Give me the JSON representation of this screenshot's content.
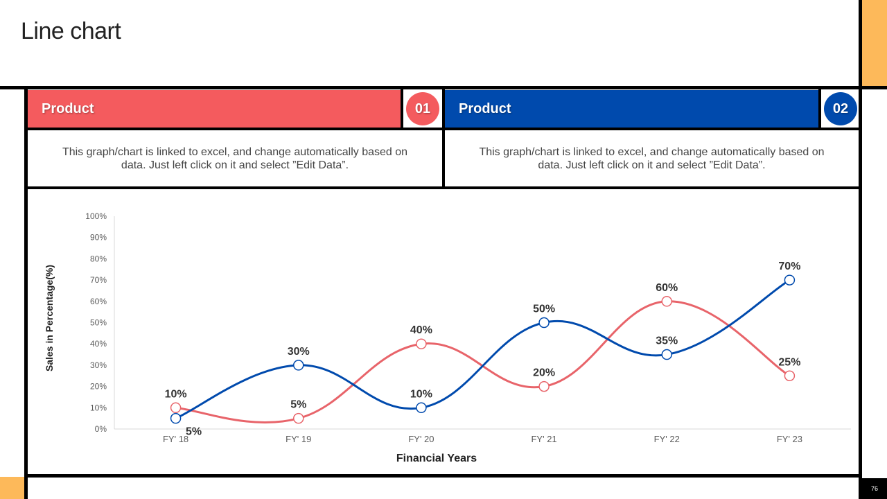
{
  "slide": {
    "title": "Line chart",
    "page_number": "76",
    "accent_color": "#FDB95A"
  },
  "products": [
    {
      "label": "Product",
      "number": "01",
      "color": "#F45B5E",
      "description": "This graph/chart is linked to excel, and change automatically based on data. Just left click on it and select ”Edit Data”."
    },
    {
      "label": "Product",
      "number": "02",
      "color": "#004AAD",
      "description": "This graph/chart is linked to excel, and change automatically based on data. Just left click on it and select ”Edit Data”."
    }
  ],
  "chart_data": {
    "type": "line",
    "title": "",
    "xlabel": "Financial Years",
    "ylabel": "Sales in Percentage(%)",
    "ylim": [
      0,
      100
    ],
    "y_ticks": [
      "0%",
      "10%",
      "20%",
      "30%",
      "40%",
      "50%",
      "60%",
      "70%",
      "80%",
      "90%",
      "100%"
    ],
    "categories": [
      "FY' 18",
      "FY' 19",
      "FY' 20",
      "FY' 21",
      "FY' 22",
      "FY' 23"
    ],
    "series": [
      {
        "name": "Product 01",
        "color": "#E8646A",
        "values": [
          10,
          5,
          40,
          20,
          60,
          25
        ],
        "labels": [
          "10%",
          "5%",
          "40%",
          "20%",
          "60%",
          "25%"
        ]
      },
      {
        "name": "Product 02",
        "color": "#004AAD",
        "values": [
          5,
          30,
          10,
          50,
          35,
          70
        ],
        "labels": [
          "5%",
          "30%",
          "10%",
          "50%",
          "35%",
          "70%"
        ]
      }
    ]
  }
}
